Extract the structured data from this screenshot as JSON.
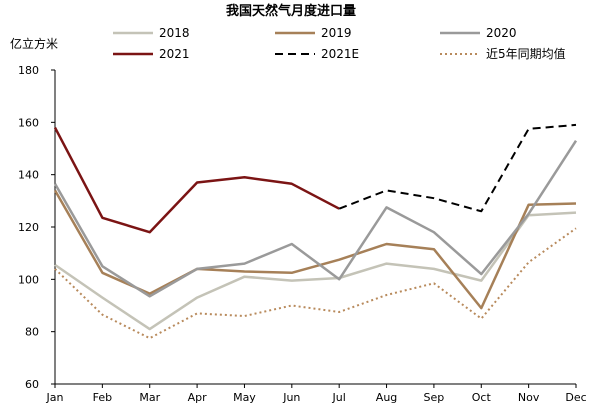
{
  "chart_data": {
    "type": "line",
    "title": "我国天然气月度进口量",
    "ylabel": "亿立方米",
    "xlabel": "",
    "categories": [
      "Jan",
      "Feb",
      "Mar",
      "Apr",
      "May",
      "Jun",
      "Jul",
      "Aug",
      "Sep",
      "Oct",
      "Nov",
      "Dec"
    ],
    "ylim": [
      60,
      180
    ],
    "yticks": [
      60,
      80,
      100,
      120,
      140,
      160,
      180
    ],
    "grid": false,
    "legend": "top",
    "series": [
      {
        "name": "2018",
        "color": "#c4c3b7",
        "style": "solid",
        "values": [
          105.5,
          93,
          81,
          93,
          101,
          99.5,
          100.5,
          106,
          104,
          99.5,
          124.5,
          125.5
        ]
      },
      {
        "name": "2019",
        "color": "#a68058",
        "style": "solid",
        "values": [
          134,
          102.5,
          94.5,
          104,
          103,
          102.5,
          107.5,
          113.5,
          111.5,
          89,
          128.5,
          129
        ]
      },
      {
        "name": "2020",
        "color": "#9a9a9a",
        "style": "solid",
        "values": [
          136.5,
          105,
          93.5,
          104,
          106,
          113.5,
          100,
          127.5,
          118,
          102,
          125,
          153
        ]
      },
      {
        "name": "2021",
        "color": "#7b1414",
        "style": "solid",
        "values": [
          158,
          123.5,
          118,
          137,
          139,
          136.5,
          127,
          null,
          null,
          null,
          null,
          null
        ]
      },
      {
        "name": "2021E",
        "color": "#000000",
        "style": "dashed",
        "values": [
          null,
          null,
          null,
          null,
          null,
          null,
          127,
          134,
          131,
          126,
          157.5,
          159
        ]
      },
      {
        "name": "近5年同期均值",
        "color": "#b88a5c",
        "style": "dotted",
        "values": [
          104,
          86.5,
          77.5,
          87,
          86,
          90,
          87.5,
          94,
          98.5,
          85,
          106.5,
          119.5
        ]
      }
    ]
  }
}
